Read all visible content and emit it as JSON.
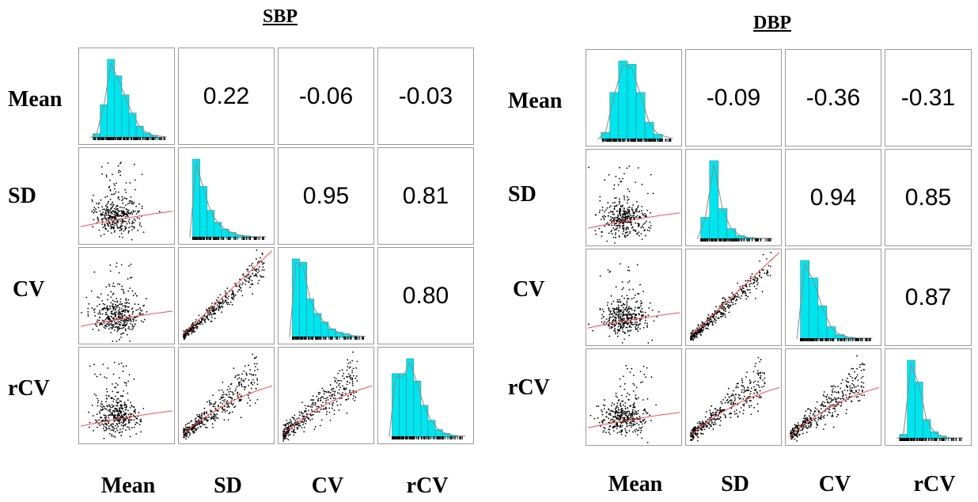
{
  "colors": {
    "histogram_fill": "#00e5ee",
    "density_line": "#8a8a8a",
    "scatter_point": "#000000",
    "fit_line": "#ff4d4d",
    "cell_border": "#9a9a9a"
  },
  "chart_data": [
    {
      "type": "scatter-matrix",
      "title": "SBP",
      "variables": [
        "Mean",
        "SD",
        "CV",
        "rCV"
      ],
      "correlations": [
        {
          "row": "Mean",
          "col": "SD",
          "value": "0.22"
        },
        {
          "row": "Mean",
          "col": "CV",
          "value": "-0.06"
        },
        {
          "row": "Mean",
          "col": "rCV",
          "value": "-0.03"
        },
        {
          "row": "SD",
          "col": "CV",
          "value": "0.95"
        },
        {
          "row": "SD",
          "col": "rCV",
          "value": "0.81"
        },
        {
          "row": "CV",
          "col": "rCV",
          "value": "0.80"
        }
      ],
      "histograms": {
        "Mean": [
          5,
          40,
          95,
          75,
          52,
          30,
          14,
          6,
          3
        ],
        "SD": [
          92,
          60,
          32,
          18,
          10,
          6,
          3,
          2,
          1
        ],
        "CV": [
          92,
          88,
          45,
          28,
          18,
          10,
          6,
          4,
          2
        ],
        "rCV": [
          68,
          68,
          84,
          60,
          34,
          18,
          8,
          4,
          2
        ]
      }
    },
    {
      "type": "scatter-matrix",
      "title": "DBP",
      "variables": [
        "Mean",
        "SD",
        "CV",
        "rCV"
      ],
      "correlations": [
        {
          "row": "Mean",
          "col": "SD",
          "value": "-0.09"
        },
        {
          "row": "Mean",
          "col": "CV",
          "value": "-0.36"
        },
        {
          "row": "Mean",
          "col": "rCV",
          "value": "-0.31"
        },
        {
          "row": "SD",
          "col": "CV",
          "value": "0.94"
        },
        {
          "row": "SD",
          "col": "rCV",
          "value": "0.85"
        },
        {
          "row": "CV",
          "col": "rCV",
          "value": "0.87"
        }
      ],
      "histograms": {
        "Mean": [
          8,
          55,
          92,
          88,
          55,
          20,
          6
        ],
        "SD": [
          25,
          90,
          35,
          12,
          4,
          2,
          1
        ],
        "CV": [
          90,
          70,
          38,
          14,
          5,
          2,
          1
        ],
        "rCV": [
          5,
          90,
          65,
          22,
          8,
          3,
          1
        ]
      }
    }
  ]
}
